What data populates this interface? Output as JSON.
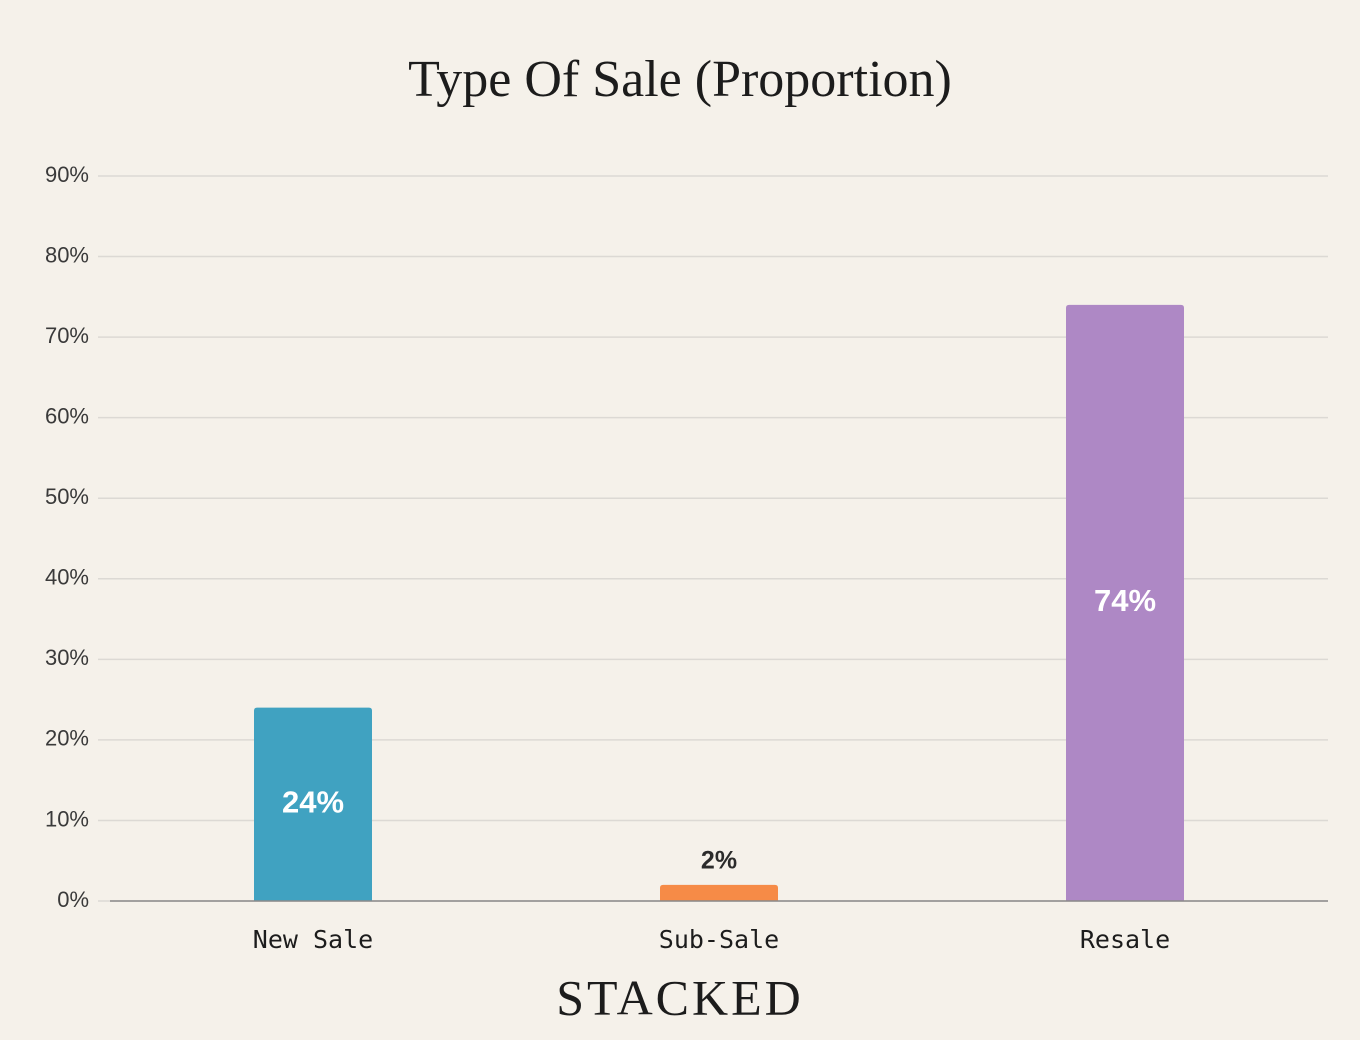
{
  "chart_data": {
    "type": "bar",
    "title": "Type Of Sale (Proportion)",
    "brand": "STACKED",
    "categories": [
      "New Sale",
      "Sub-Sale",
      "Resale"
    ],
    "values": [
      24,
      2,
      74
    ],
    "value_labels": [
      "24%",
      "2%",
      "74%"
    ],
    "colors": [
      "#40a2c1",
      "#f68b47",
      "#ae88c5"
    ],
    "ylim": [
      0,
      90
    ],
    "yticks": [
      {
        "value": 0,
        "label": "0%"
      },
      {
        "value": 10,
        "label": "10%"
      },
      {
        "value": 20,
        "label": "20%"
      },
      {
        "value": 30,
        "label": "30%"
      },
      {
        "value": 40,
        "label": "40%"
      },
      {
        "value": 50,
        "label": "50%"
      },
      {
        "value": 60,
        "label": "60%"
      },
      {
        "value": 70,
        "label": "70%"
      },
      {
        "value": 80,
        "label": "80%"
      },
      {
        "value": 90,
        "label": "90%"
      }
    ],
    "grid": true
  }
}
